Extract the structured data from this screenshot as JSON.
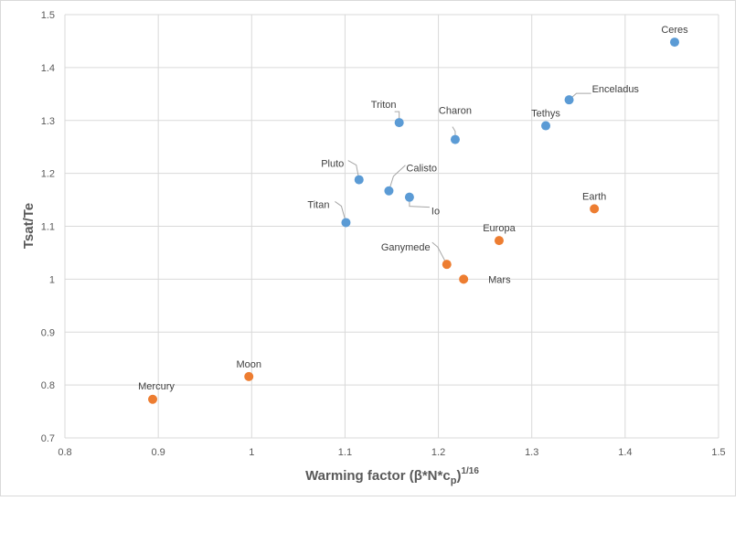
{
  "chart_data": {
    "type": "scatter",
    "xlabel": "Warming factor  (β*N*c",
    "xlabel_sub": "p",
    "xlabel_close": ")",
    "xlabel_sup": "1/16",
    "ylabel": "Tsat/Te",
    "xlim": [
      0.8,
      1.5
    ],
    "ylim": [
      0.7,
      1.5
    ],
    "x_ticks": [
      "0.8",
      "0.9",
      "1",
      "1.1",
      "1.2",
      "1.3",
      "1.4",
      "1.5"
    ],
    "y_ticks": [
      "0.7",
      "0.8",
      "0.9",
      "1",
      "1.1",
      "1.2",
      "1.3",
      "1.4",
      "1.5"
    ],
    "grid": true,
    "colors": {
      "blue": "#5b9bd5",
      "orange": "#ed7d31"
    },
    "series": [
      {
        "color": "#5b9bd5",
        "points": [
          {
            "label": "Ceres",
            "x": 1.453,
            "y": 1.448
          },
          {
            "label": "Enceladus",
            "x": 1.34,
            "y": 1.339
          },
          {
            "label": "Tethys",
            "x": 1.315,
            "y": 1.29
          },
          {
            "label": "Triton",
            "x": 1.158,
            "y": 1.296
          },
          {
            "label": "Charon",
            "x": 1.218,
            "y": 1.264
          },
          {
            "label": "Pluto",
            "x": 1.115,
            "y": 1.188
          },
          {
            "label": "Calisto",
            "x": 1.147,
            "y": 1.167
          },
          {
            "label": "Io",
            "x": 1.169,
            "y": 1.155
          },
          {
            "label": "Titan",
            "x": 1.101,
            "y": 1.107
          }
        ]
      },
      {
        "color": "#ed7d31",
        "points": [
          {
            "label": "Earth",
            "x": 1.367,
            "y": 1.133
          },
          {
            "label": "Europa",
            "x": 1.265,
            "y": 1.073
          },
          {
            "label": "Ganymede",
            "x": 1.209,
            "y": 1.028
          },
          {
            "label": "Mars",
            "x": 1.227,
            "y": 1.0
          },
          {
            "label": "Moon",
            "x": 0.997,
            "y": 0.816
          },
          {
            "label": "Mercury",
            "x": 0.894,
            "y": 0.773
          }
        ]
      }
    ]
  }
}
